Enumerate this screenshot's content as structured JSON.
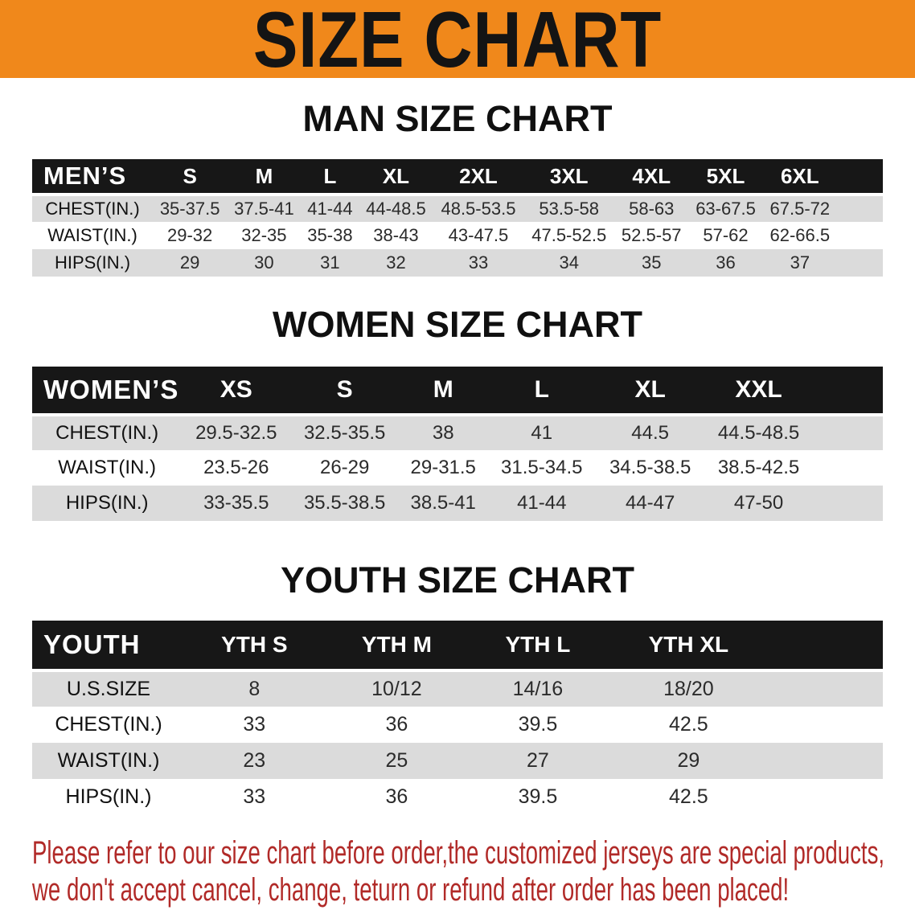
{
  "banner": {
    "title": "SIZE CHART"
  },
  "men": {
    "heading": "MAN SIZE CHART",
    "corner": "MEN’S",
    "sizes": [
      "S",
      "M",
      "L",
      "XL",
      "2XL",
      "3XL",
      "4XL",
      "5XL",
      "6XL"
    ],
    "rows": [
      {
        "label": "CHEST(IN.)",
        "values": [
          "35-37.5",
          "37.5-41",
          "41-44",
          "44-48.5",
          "48.5-53.5",
          "53.5-58",
          "58-63",
          "63-67.5",
          "67.5-72"
        ]
      },
      {
        "label": "WAIST(IN.)",
        "values": [
          "29-32",
          "32-35",
          "35-38",
          "38-43",
          "43-47.5",
          "47.5-52.5",
          "52.5-57",
          "57-62",
          "62-66.5"
        ]
      },
      {
        "label": "HIPS(IN.)",
        "values": [
          "29",
          "30",
          "31",
          "32",
          "33",
          "34",
          "35",
          "36",
          "37"
        ]
      }
    ]
  },
  "women": {
    "heading": "WOMEN SIZE CHART",
    "corner": "WOMEN’S",
    "sizes": [
      "XS",
      "S",
      "M",
      "L",
      "XL",
      "XXL"
    ],
    "rows": [
      {
        "label": "CHEST(IN.)",
        "values": [
          "29.5-32.5",
          "32.5-35.5",
          "38",
          "41",
          "44.5",
          "44.5-48.5"
        ]
      },
      {
        "label": "WAIST(IN.)",
        "values": [
          "23.5-26",
          "26-29",
          "29-31.5",
          "31.5-34.5",
          "34.5-38.5",
          "38.5-42.5"
        ]
      },
      {
        "label": "HIPS(IN.)",
        "values": [
          "33-35.5",
          "35.5-38.5",
          "38.5-41",
          "41-44",
          "44-47",
          "47-50"
        ]
      }
    ]
  },
  "youth": {
    "heading": "YOUTH SIZE CHART",
    "corner": "YOUTH",
    "sizes": [
      "YTH S",
      "YTH M",
      "YTH L",
      "YTH XL"
    ],
    "rows": [
      {
        "label": "U.S.SIZE",
        "values": [
          "8",
          "10/12",
          "14/16",
          "18/20"
        ]
      },
      {
        "label": "CHEST(IN.)",
        "values": [
          "33",
          "36",
          "39.5",
          "42.5"
        ]
      },
      {
        "label": "WAIST(IN.)",
        "values": [
          "23",
          "25",
          "27",
          "29"
        ]
      },
      {
        "label": "HIPS(IN.)",
        "values": [
          "33",
          "36",
          "39.5",
          "42.5"
        ]
      }
    ]
  },
  "disclaimer": {
    "line1": "Please refer to our size chart before order,the customized jerseys are special products,",
    "line2": "we don't accept cancel, change, teturn or refund after order has been placed!"
  },
  "colors": {
    "banner_bg": "#F0881B",
    "header_bg": "#171717",
    "row_alt": "#DBDBDB",
    "disclaimer_red": "#B12A28"
  }
}
